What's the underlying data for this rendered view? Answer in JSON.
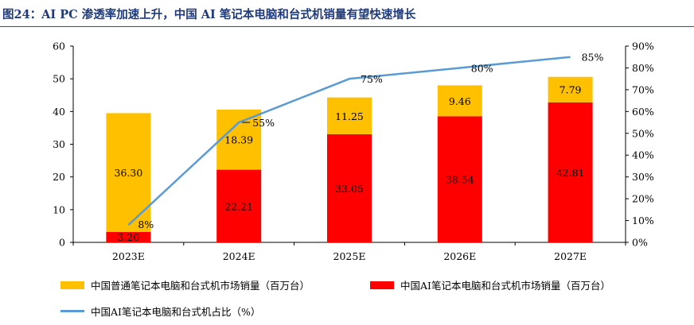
{
  "title": "图24：AI PC 渗透率加速上升，中国 AI 笔记本电脑和台式机销量有望快速增长",
  "colors": {
    "normal": "#FFC000",
    "ai": "#FF0000",
    "ratio_line": "#5B9BD5",
    "title": "#1F3A7A"
  },
  "legend": {
    "normal": "中国普通笔记本电脑和台式机市场销量（百万台）",
    "ai": "中国AI笔记本电脑和台式机市场销量（百万台）",
    "ratio": "中国AI笔记本电脑和台式机占比（%）"
  },
  "chart_data": {
    "type": "bar",
    "stacked": true,
    "categories": [
      "2023E",
      "2024E",
      "2025E",
      "2026E",
      "2027E"
    ],
    "series": [
      {
        "name": "中国AI笔记本电脑和台式机市场销量（百万台）",
        "type": "bar",
        "axis": "left",
        "values": [
          3.2,
          22.21,
          33.05,
          38.54,
          42.81
        ],
        "labels": [
          "3.20",
          "22.21",
          "33.05",
          "38.54",
          "42.81"
        ]
      },
      {
        "name": "中国普通笔记本电脑和台式机市场销量（百万台）",
        "type": "bar",
        "axis": "left",
        "values": [
          36.3,
          18.39,
          11.25,
          9.46,
          7.79
        ],
        "labels": [
          "36.30",
          "18.39",
          "11.25",
          "9.46",
          "7.79"
        ]
      },
      {
        "name": "中国AI笔记本电脑和台式机占比（%）",
        "type": "line",
        "axis": "right",
        "values": [
          8,
          55,
          75,
          80,
          85
        ],
        "labels": [
          "8%",
          "55%",
          "75%",
          "80%",
          "85%"
        ]
      }
    ],
    "y_left": {
      "range": [
        0,
        60
      ],
      "ticks": [
        "0",
        "10",
        "20",
        "30",
        "40",
        "50",
        "60"
      ]
    },
    "y_right": {
      "range": [
        0,
        90
      ],
      "ticks": [
        "0%",
        "10%",
        "20%",
        "30%",
        "40%",
        "50%",
        "60%",
        "70%",
        "80%",
        "90%"
      ]
    },
    "grid": false,
    "legend_position": "bottom"
  }
}
